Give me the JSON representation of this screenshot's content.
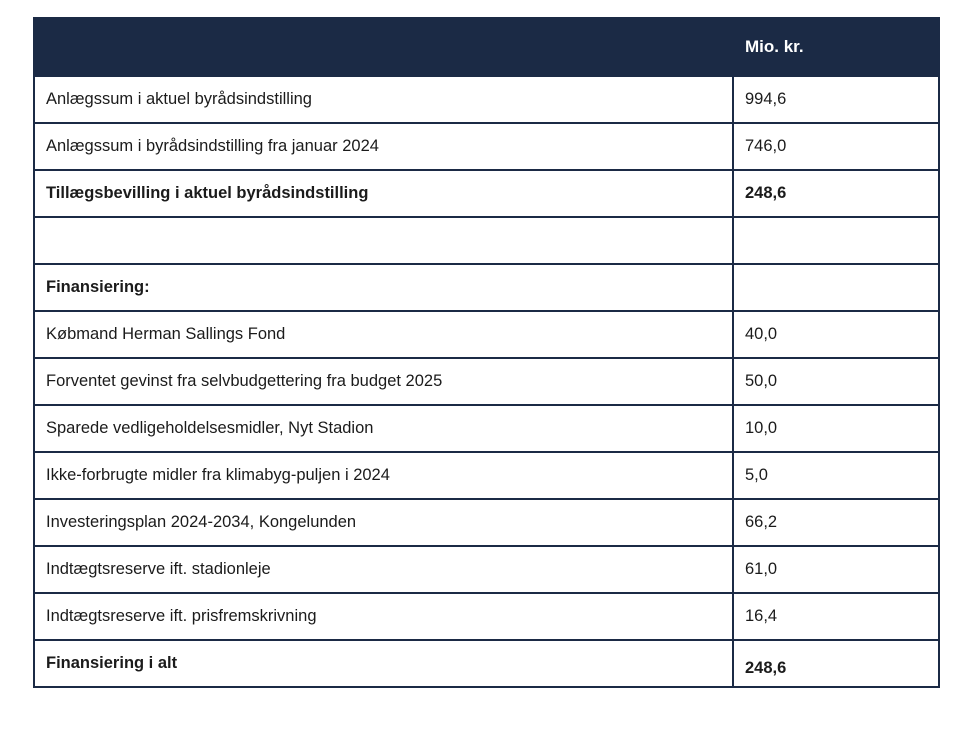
{
  "table": {
    "header": {
      "label": "",
      "unit_label": "Mio. kr."
    },
    "rows": [
      {
        "label": "Anlægssum i aktuel byrådsindstilling",
        "value": "994,6",
        "bold": false
      },
      {
        "label": "Anlægssum i byrådsindstilling fra januar 2024",
        "value": "746,0",
        "bold": false
      },
      {
        "label": "Tillægsbevilling i aktuel byrådsindstilling",
        "value": "248,6",
        "bold": true
      },
      {
        "label": "",
        "value": "",
        "bold": false
      },
      {
        "label": "Finansiering:",
        "value": "",
        "bold": true
      },
      {
        "label": "Købmand Herman Sallings Fond",
        "value": "40,0",
        "bold": false
      },
      {
        "label": "Forventet gevinst fra selvbudgettering fra budget 2025",
        "value": "50,0",
        "bold": false
      },
      {
        "label": "Sparede vedligeholdelsesmidler, Nyt Stadion",
        "value": "10,0",
        "bold": false
      },
      {
        "label": "Ikke-forbrugte midler fra klimabyg-puljen i 2024",
        "value": "5,0",
        "bold": false
      },
      {
        "label": "Investeringsplan 2024-2034, Kongelunden",
        "value": "66,2",
        "bold": false
      },
      {
        "label": "Indtægtsreserve ift. stadionleje",
        "value": "61,0",
        "bold": false
      },
      {
        "label": "Indtægtsreserve ift. prisfremskrivning",
        "value": "16,4",
        "bold": false
      },
      {
        "label": "Finansiering i alt",
        "value": "248,6",
        "bold": true
      }
    ],
    "colors": {
      "header_bg": "#1b2a45",
      "border": "#1b2a45",
      "text": "#1b1b1b",
      "header_text": "#ffffff"
    }
  }
}
